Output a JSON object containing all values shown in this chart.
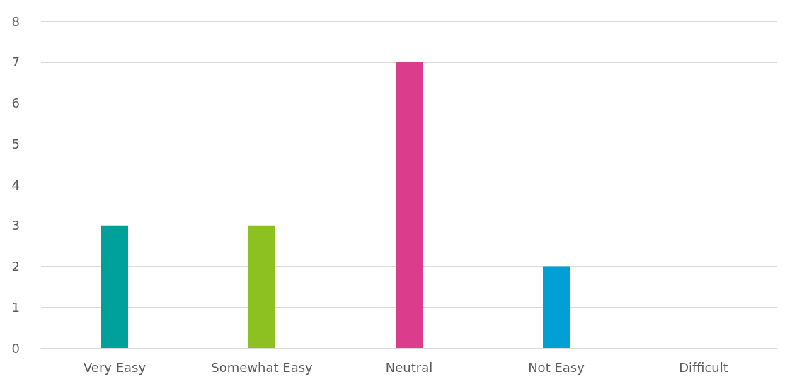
{
  "chart_data": {
    "type": "bar",
    "categories": [
      "Very Easy",
      "Somewhat Easy",
      "Neutral",
      "Not Easy",
      "Difficult"
    ],
    "values": [
      3,
      3,
      7,
      2,
      0
    ],
    "colors": [
      "#00a19a",
      "#8dc021",
      "#dc3c8c",
      "#009fd4",
      "#7f7f7f"
    ],
    "ylim": [
      0,
      8
    ],
    "yticks": [
      0,
      1,
      2,
      3,
      4,
      5,
      6,
      7,
      8
    ],
    "grid": "y"
  }
}
